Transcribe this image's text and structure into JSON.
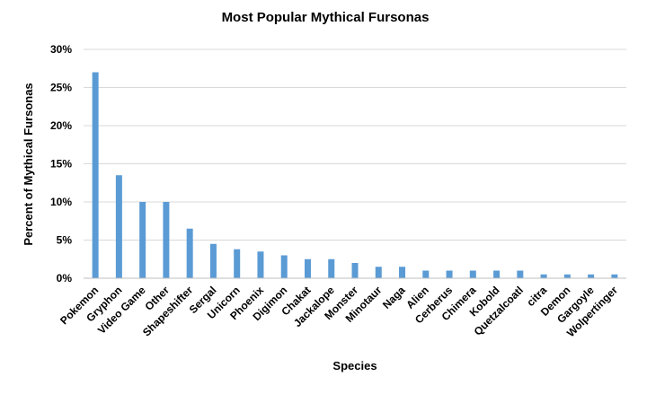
{
  "chart_data": {
    "type": "bar",
    "title": "Most Popular Mythical Fursonas",
    "xlabel": "Species",
    "ylabel": "Percent of Mythical Fursonas",
    "categories": [
      "Pokemon",
      "Gryphon",
      "Video Game",
      "Other",
      "Shapeshifter",
      "Sergal",
      "Unicorn",
      "Phoenix",
      "Digimon",
      "Chakat",
      "Jackalope",
      "Monster",
      "Minotaur",
      "Naga",
      "Alien",
      "Cerberus",
      "Chimera",
      "Kobold",
      "Quetzalcoatl",
      "citra",
      "Demon",
      "Gargoyle",
      "Wolpertinger"
    ],
    "values": [
      27,
      13.5,
      10,
      10,
      6.5,
      4.5,
      3.8,
      3.5,
      3,
      2.5,
      2.5,
      2,
      1.5,
      1.5,
      1,
      1,
      1,
      1,
      1,
      0.5,
      0.5,
      0.5,
      0.5
    ],
    "ylim": [
      0,
      30
    ],
    "yticks": [
      0,
      5,
      10,
      15,
      20,
      25,
      30
    ],
    "ytick_labels": [
      "0%",
      "5%",
      "10%",
      "15%",
      "20%",
      "25%",
      "30%"
    ],
    "grid": true,
    "legend": "none",
    "colors": {
      "bar": "#5b9bd5",
      "grid": "#d9d9d9",
      "axis": "#bfbfbf"
    }
  }
}
